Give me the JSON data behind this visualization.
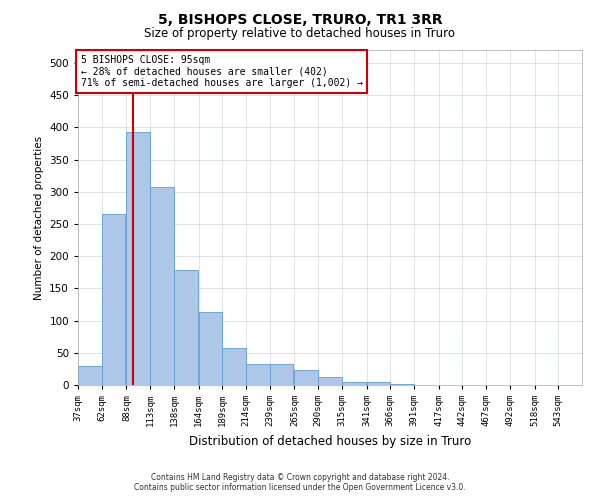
{
  "title": "5, BISHOPS CLOSE, TRURO, TR1 3RR",
  "subtitle": "Size of property relative to detached houses in Truro",
  "xlabel": "Distribution of detached houses by size in Truro",
  "ylabel": "Number of detached properties",
  "footer_line1": "Contains HM Land Registry data © Crown copyright and database right 2024.",
  "footer_line2": "Contains public sector information licensed under the Open Government Licence v3.0.",
  "bar_labels": [
    "37sqm",
    "62sqm",
    "88sqm",
    "113sqm",
    "138sqm",
    "164sqm",
    "189sqm",
    "214sqm",
    "239sqm",
    "265sqm",
    "290sqm",
    "315sqm",
    "341sqm",
    "366sqm",
    "391sqm",
    "417sqm",
    "442sqm",
    "467sqm",
    "492sqm",
    "518sqm",
    "543sqm"
  ],
  "bar_values": [
    30,
    265,
    393,
    308,
    178,
    113,
    58,
    32,
    32,
    23,
    13,
    5,
    5,
    1,
    0,
    0,
    0,
    0,
    0,
    0,
    0
  ],
  "bar_color": "#aec6e8",
  "bar_edge_color": "#5a9fd4",
  "property_line_x": 95,
  "annotation_title": "5 BISHOPS CLOSE: 95sqm",
  "annotation_line1": "← 28% of detached houses are smaller (402)",
  "annotation_line2": "71% of semi-detached houses are larger (1,002) →",
  "annotation_box_color": "#ffffff",
  "annotation_box_edge_color": "#cc0000",
  "vline_color": "#cc0000",
  "ylim": [
    0,
    520
  ],
  "yticks": [
    0,
    50,
    100,
    150,
    200,
    250,
    300,
    350,
    400,
    450,
    500
  ],
  "grid_color": "#d0d8e8",
  "background_color": "#ffffff",
  "bin_starts": [
    37,
    62,
    88,
    113,
    138,
    164,
    189,
    214,
    239,
    265,
    290,
    315,
    341,
    366,
    391,
    417,
    442,
    467,
    492,
    518,
    543
  ],
  "bin_width": 25
}
